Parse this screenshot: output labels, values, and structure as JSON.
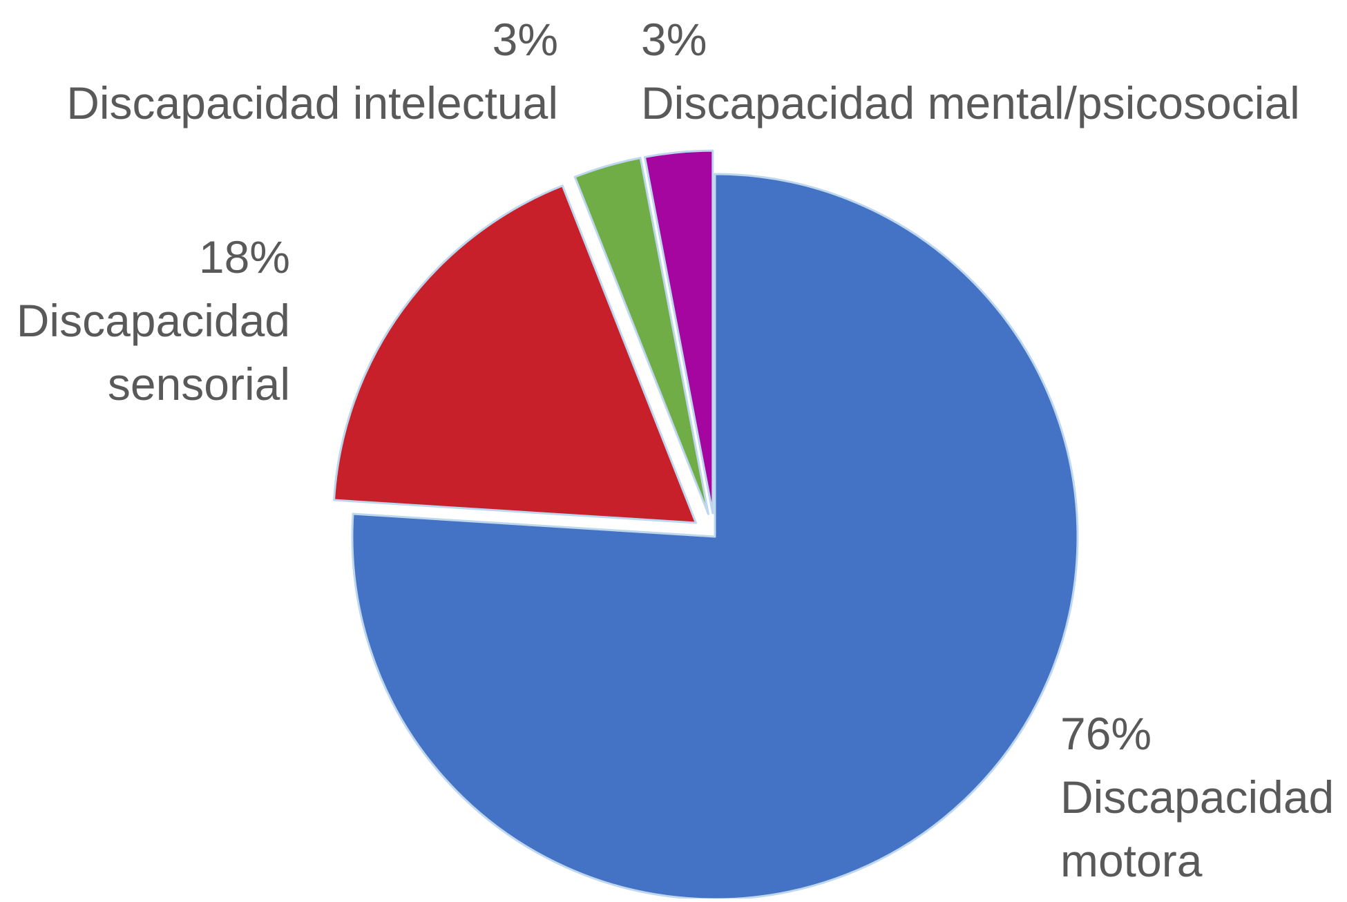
{
  "chart_data": {
    "type": "pie",
    "title": "",
    "slices": [
      {
        "label": "Discapacidad motora",
        "value": 76,
        "percent_label": "76%",
        "color": "#4472C4"
      },
      {
        "label": "Discapacidad sensorial",
        "value": 18,
        "percent_label": "18%",
        "color": "#C8202A"
      },
      {
        "label": "Discapacidad intelectual",
        "value": 3,
        "percent_label": "3%",
        "color": "#70AD47"
      },
      {
        "label": "Discapacidad mental/psicosocial",
        "value": 3,
        "percent_label": "3%",
        "color": "#A5069F"
      }
    ],
    "start_angle": "12 o'clock",
    "direction": "clockwise",
    "exploded": true,
    "legend": "none"
  }
}
